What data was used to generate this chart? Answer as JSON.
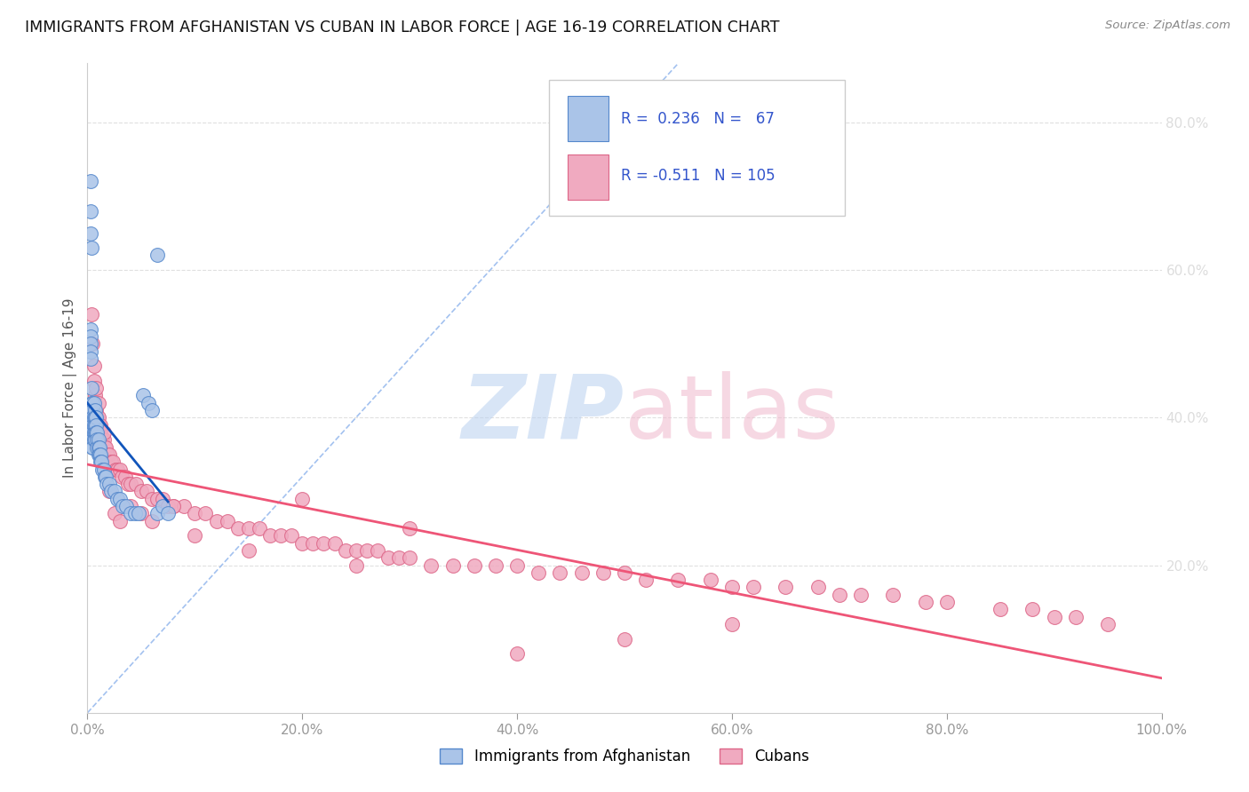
{
  "title": "IMMIGRANTS FROM AFGHANISTAN VS CUBAN IN LABOR FORCE | AGE 16-19 CORRELATION CHART",
  "source": "Source: ZipAtlas.com",
  "ylabel": "In Labor Force | Age 16-19",
  "xlim": [
    0.0,
    1.0
  ],
  "ylim": [
    0.0,
    0.88
  ],
  "x_tick_labels": [
    "0.0%",
    "20.0%",
    "40.0%",
    "60.0%",
    "80.0%",
    "100.0%"
  ],
  "x_ticks": [
    0.0,
    0.2,
    0.4,
    0.6,
    0.8,
    1.0
  ],
  "y_ticks_right": [
    0.2,
    0.4,
    0.6,
    0.8
  ],
  "y_tick_labels_right": [
    "20.0%",
    "40.0%",
    "60.0%",
    "80.0%"
  ],
  "afghanistan_color": "#aac4e8",
  "afghanistan_edge_color": "#5588cc",
  "cuba_color": "#f0aac0",
  "cuba_edge_color": "#dd6688",
  "afghanistan_line_color": "#1155bb",
  "cuba_line_color": "#ee5577",
  "ref_line_color": "#99bbee",
  "R_afghanistan": 0.236,
  "N_afghanistan": 67,
  "R_cuba": -0.511,
  "N_cuba": 105,
  "legend_text_color": "#3355cc",
  "background_color": "#ffffff",
  "grid_color": "#e0e0e0",
  "af_x": [
    0.003,
    0.003,
    0.003,
    0.004,
    0.004,
    0.004,
    0.004,
    0.004,
    0.005,
    0.005,
    0.005,
    0.005,
    0.005,
    0.005,
    0.005,
    0.005,
    0.006,
    0.006,
    0.006,
    0.006,
    0.006,
    0.007,
    0.007,
    0.007,
    0.007,
    0.007,
    0.008,
    0.008,
    0.008,
    0.009,
    0.009,
    0.009,
    0.01,
    0.01,
    0.01,
    0.011,
    0.011,
    0.012,
    0.012,
    0.013,
    0.014,
    0.015,
    0.016,
    0.017,
    0.018,
    0.02,
    0.022,
    0.025,
    0.028,
    0.03,
    0.033,
    0.036,
    0.04,
    0.044,
    0.048,
    0.052,
    0.057,
    0.06,
    0.065,
    0.07,
    0.075,
    0.003,
    0.003,
    0.003,
    0.003,
    0.003,
    0.065
  ],
  "af_y": [
    0.72,
    0.68,
    0.65,
    0.63,
    0.44,
    0.42,
    0.4,
    0.38,
    0.42,
    0.41,
    0.4,
    0.39,
    0.38,
    0.37,
    0.36,
    0.36,
    0.42,
    0.4,
    0.39,
    0.38,
    0.37,
    0.41,
    0.4,
    0.39,
    0.38,
    0.37,
    0.4,
    0.39,
    0.38,
    0.38,
    0.37,
    0.36,
    0.37,
    0.36,
    0.35,
    0.36,
    0.35,
    0.35,
    0.34,
    0.34,
    0.33,
    0.33,
    0.32,
    0.32,
    0.31,
    0.31,
    0.3,
    0.3,
    0.29,
    0.29,
    0.28,
    0.28,
    0.27,
    0.27,
    0.27,
    0.43,
    0.42,
    0.41,
    0.27,
    0.28,
    0.27,
    0.52,
    0.51,
    0.5,
    0.49,
    0.48,
    0.62
  ],
  "cu_x": [
    0.004,
    0.005,
    0.006,
    0.006,
    0.007,
    0.008,
    0.009,
    0.01,
    0.01,
    0.011,
    0.012,
    0.012,
    0.013,
    0.014,
    0.015,
    0.016,
    0.017,
    0.018,
    0.019,
    0.02,
    0.022,
    0.024,
    0.026,
    0.028,
    0.03,
    0.032,
    0.035,
    0.038,
    0.04,
    0.045,
    0.05,
    0.055,
    0.06,
    0.065,
    0.07,
    0.075,
    0.08,
    0.09,
    0.1,
    0.11,
    0.12,
    0.13,
    0.14,
    0.15,
    0.16,
    0.17,
    0.18,
    0.19,
    0.2,
    0.21,
    0.22,
    0.23,
    0.24,
    0.25,
    0.26,
    0.27,
    0.28,
    0.29,
    0.3,
    0.32,
    0.34,
    0.36,
    0.38,
    0.4,
    0.42,
    0.44,
    0.46,
    0.48,
    0.5,
    0.52,
    0.55,
    0.58,
    0.6,
    0.62,
    0.65,
    0.68,
    0.7,
    0.72,
    0.75,
    0.78,
    0.8,
    0.85,
    0.88,
    0.9,
    0.92,
    0.95,
    0.008,
    0.01,
    0.012,
    0.015,
    0.02,
    0.025,
    0.03,
    0.04,
    0.05,
    0.06,
    0.08,
    0.1,
    0.15,
    0.2,
    0.25,
    0.3,
    0.4,
    0.5,
    0.6
  ],
  "cu_y": [
    0.54,
    0.5,
    0.47,
    0.45,
    0.43,
    0.41,
    0.4,
    0.4,
    0.39,
    0.39,
    0.38,
    0.38,
    0.37,
    0.37,
    0.37,
    0.36,
    0.36,
    0.35,
    0.35,
    0.35,
    0.34,
    0.34,
    0.33,
    0.33,
    0.33,
    0.32,
    0.32,
    0.31,
    0.31,
    0.31,
    0.3,
    0.3,
    0.29,
    0.29,
    0.29,
    0.28,
    0.28,
    0.28,
    0.27,
    0.27,
    0.26,
    0.26,
    0.25,
    0.25,
    0.25,
    0.24,
    0.24,
    0.24,
    0.23,
    0.23,
    0.23,
    0.23,
    0.22,
    0.22,
    0.22,
    0.22,
    0.21,
    0.21,
    0.21,
    0.2,
    0.2,
    0.2,
    0.2,
    0.2,
    0.19,
    0.19,
    0.19,
    0.19,
    0.19,
    0.18,
    0.18,
    0.18,
    0.17,
    0.17,
    0.17,
    0.17,
    0.16,
    0.16,
    0.16,
    0.15,
    0.15,
    0.14,
    0.14,
    0.13,
    0.13,
    0.12,
    0.44,
    0.42,
    0.39,
    0.38,
    0.3,
    0.27,
    0.26,
    0.28,
    0.27,
    0.26,
    0.28,
    0.24,
    0.22,
    0.29,
    0.2,
    0.25,
    0.08,
    0.1,
    0.12
  ]
}
